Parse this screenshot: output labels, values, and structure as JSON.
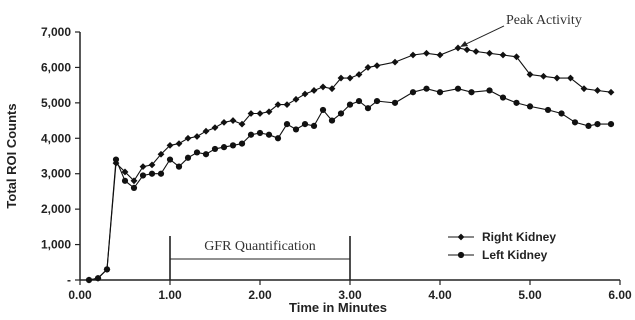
{
  "chart_data": {
    "type": "line",
    "xlabel": "Time in Minutes",
    "ylabel": "Total ROI Counts",
    "xlim": [
      0,
      6
    ],
    "ylim": [
      0,
      7000
    ],
    "x_ticks": [
      "0.00",
      "1.00",
      "2.00",
      "3.00",
      "4.00",
      "5.00",
      "6.00"
    ],
    "y_ticks": [
      "-",
      "1,000",
      "2,000",
      "3,000",
      "4,000",
      "5,000",
      "6,000",
      "7,000"
    ],
    "grid": false,
    "legend_position": "bottom-right",
    "series": [
      {
        "name": "Right Kidney",
        "marker": "diamond",
        "color": "#111111",
        "x": [
          0.1,
          0.2,
          0.3,
          0.4,
          0.5,
          0.6,
          0.7,
          0.8,
          0.9,
          1.0,
          1.1,
          1.2,
          1.3,
          1.4,
          1.5,
          1.6,
          1.7,
          1.8,
          1.9,
          2.0,
          2.1,
          2.2,
          2.3,
          2.4,
          2.5,
          2.6,
          2.7,
          2.8,
          2.9,
          3.0,
          3.1,
          3.2,
          3.3,
          3.5,
          3.7,
          3.85,
          4.0,
          4.2,
          4.3,
          4.4,
          4.55,
          4.7,
          4.85,
          5.0,
          5.15,
          5.3,
          5.45,
          5.6,
          5.75,
          5.9
        ],
        "y": [
          0,
          50,
          300,
          3300,
          3050,
          2800,
          3200,
          3250,
          3550,
          3800,
          3850,
          4000,
          4050,
          4200,
          4300,
          4450,
          4500,
          4400,
          4700,
          4700,
          4750,
          4950,
          4950,
          5100,
          5250,
          5350,
          5450,
          5400,
          5700,
          5700,
          5800,
          6000,
          6050,
          6150,
          6350,
          6400,
          6350,
          6550,
          6500,
          6450,
          6400,
          6350,
          6300,
          5800,
          5750,
          5700,
          5700,
          5400,
          5350,
          5300
        ]
      },
      {
        "name": "Left Kidney",
        "marker": "circle",
        "color": "#111111",
        "x": [
          0.1,
          0.2,
          0.3,
          0.4,
          0.5,
          0.6,
          0.7,
          0.8,
          0.9,
          1.0,
          1.1,
          1.2,
          1.3,
          1.4,
          1.5,
          1.6,
          1.7,
          1.8,
          1.9,
          2.0,
          2.1,
          2.2,
          2.3,
          2.4,
          2.5,
          2.6,
          2.7,
          2.8,
          2.9,
          3.0,
          3.1,
          3.2,
          3.3,
          3.5,
          3.7,
          3.85,
          4.0,
          4.2,
          4.35,
          4.55,
          4.7,
          4.85,
          5.0,
          5.2,
          5.35,
          5.5,
          5.65,
          5.75,
          5.9
        ],
        "y": [
          0,
          50,
          300,
          3400,
          2800,
          2600,
          2950,
          3000,
          3000,
          3400,
          3200,
          3450,
          3600,
          3550,
          3700,
          3750,
          3800,
          3850,
          4100,
          4150,
          4100,
          4000,
          4400,
          4250,
          4400,
          4350,
          4800,
          4500,
          4700,
          4950,
          5050,
          4850,
          5050,
          5000,
          5300,
          5400,
          5300,
          5400,
          5300,
          5350,
          5150,
          5000,
          4900,
          4800,
          4700,
          4450,
          4350,
          4400,
          4400
        ]
      }
    ],
    "annotations": {
      "peak_label": "Peak Activity",
      "peak_x": 4.2,
      "peak_y": 6550,
      "gfr_label": "GFR Quantification",
      "gfr_start": 1.0,
      "gfr_end": 3.0
    }
  }
}
